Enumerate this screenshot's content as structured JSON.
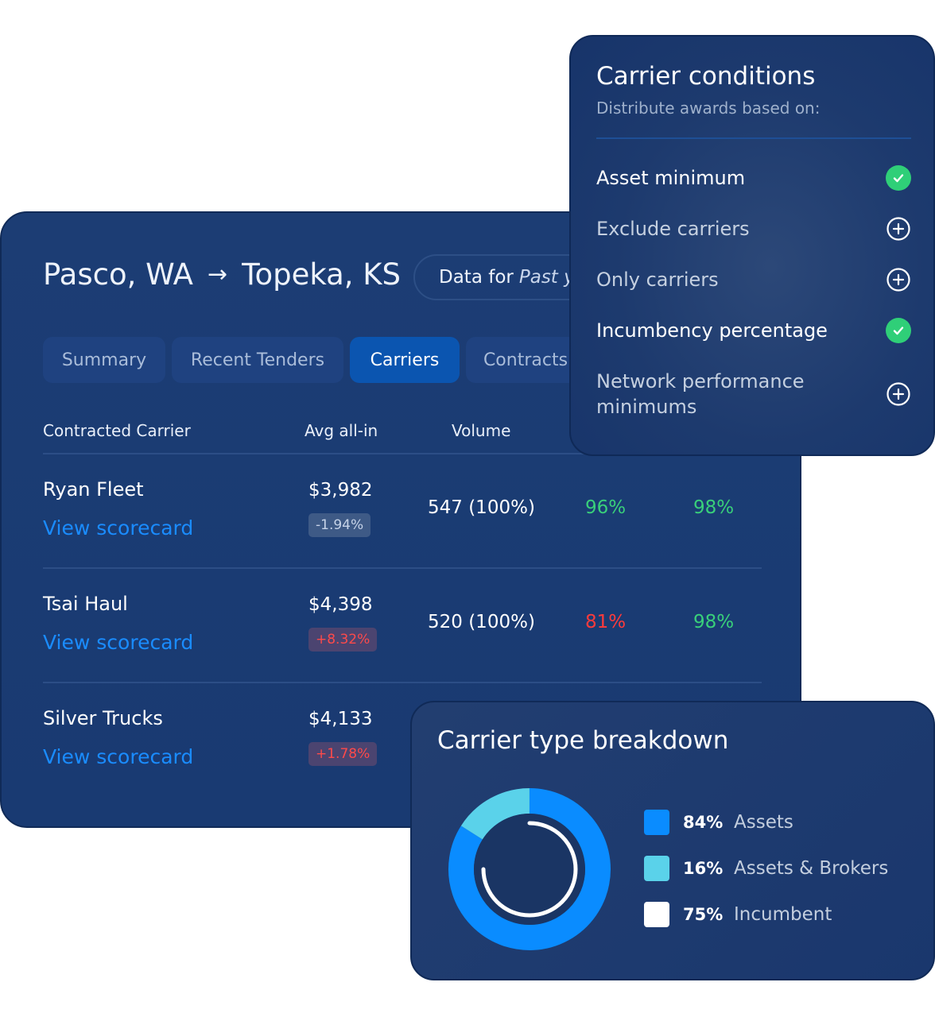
{
  "route": {
    "origin": "Pasco, WA",
    "arrow": "→",
    "destination": "Topeka, KS"
  },
  "data_filter": {
    "prefix": "Data for",
    "value": "Past y"
  },
  "tabs": [
    {
      "label": "Summary",
      "active": false
    },
    {
      "label": "Recent Tenders",
      "active": false
    },
    {
      "label": "Carriers",
      "active": true
    },
    {
      "label": "Contracts",
      "active": false
    }
  ],
  "table": {
    "headers": [
      "Contracted Carrier",
      "Avg all-in",
      "Volume"
    ],
    "rows": [
      {
        "carrier": "Ryan Fleet",
        "link": "View scorecard",
        "avg": "$3,982",
        "delta": "-1.94%",
        "delta_type": "neg",
        "volume": "547 (100%)",
        "metric_a": "96%",
        "metric_a_status": "good",
        "metric_b": "98%",
        "metric_b_status": "good"
      },
      {
        "carrier": "Tsai Haul",
        "link": "View scorecard",
        "avg": "$4,398",
        "delta": "+8.32%",
        "delta_type": "pos",
        "volume": "520 (100%)",
        "metric_a": "81%",
        "metric_a_status": "bad",
        "metric_b": "98%",
        "metric_b_status": "good"
      },
      {
        "carrier": "Silver Trucks",
        "link": "View scorecard",
        "avg": "$4,133",
        "delta": "+1.78%",
        "delta_type": "pos"
      }
    ]
  },
  "conditions": {
    "title": "Carrier conditions",
    "subtitle": "Distribute awards based on:",
    "items": [
      {
        "label": "Asset minimum",
        "enabled": true,
        "icon": "check-icon"
      },
      {
        "label": "Exclude carriers",
        "enabled": false,
        "icon": "plus-circle-icon"
      },
      {
        "label": "Only carriers",
        "enabled": false,
        "icon": "plus-circle-icon"
      },
      {
        "label": "Incumbency percentage",
        "enabled": true,
        "icon": "check-icon"
      },
      {
        "label": "Network performance minimums",
        "enabled": false,
        "icon": "plus-circle-icon"
      }
    ]
  },
  "breakdown": {
    "title": "Carrier type breakdown",
    "legend": [
      {
        "pct": "84%",
        "label": "Assets",
        "color": "#0a8cff"
      },
      {
        "pct": "16%",
        "label": "Assets & Brokers",
        "color": "#5ad2ea"
      },
      {
        "pct": "75%",
        "label": "Incumbent",
        "color": "#ffffff"
      }
    ]
  },
  "chart_data": {
    "type": "pie",
    "categories": [
      "Assets",
      "Assets & Brokers"
    ],
    "values": [
      84,
      16
    ],
    "inner_ring": {
      "label": "Incumbent",
      "value": 75
    },
    "title": "Carrier type breakdown"
  },
  "colors": {
    "panel_bg": "#1b3c73",
    "link": "#1a8cff",
    "good": "#39d07a",
    "bad": "#ff3b3b",
    "active_tab": "#0b55b0",
    "check": "#2fcf78"
  }
}
